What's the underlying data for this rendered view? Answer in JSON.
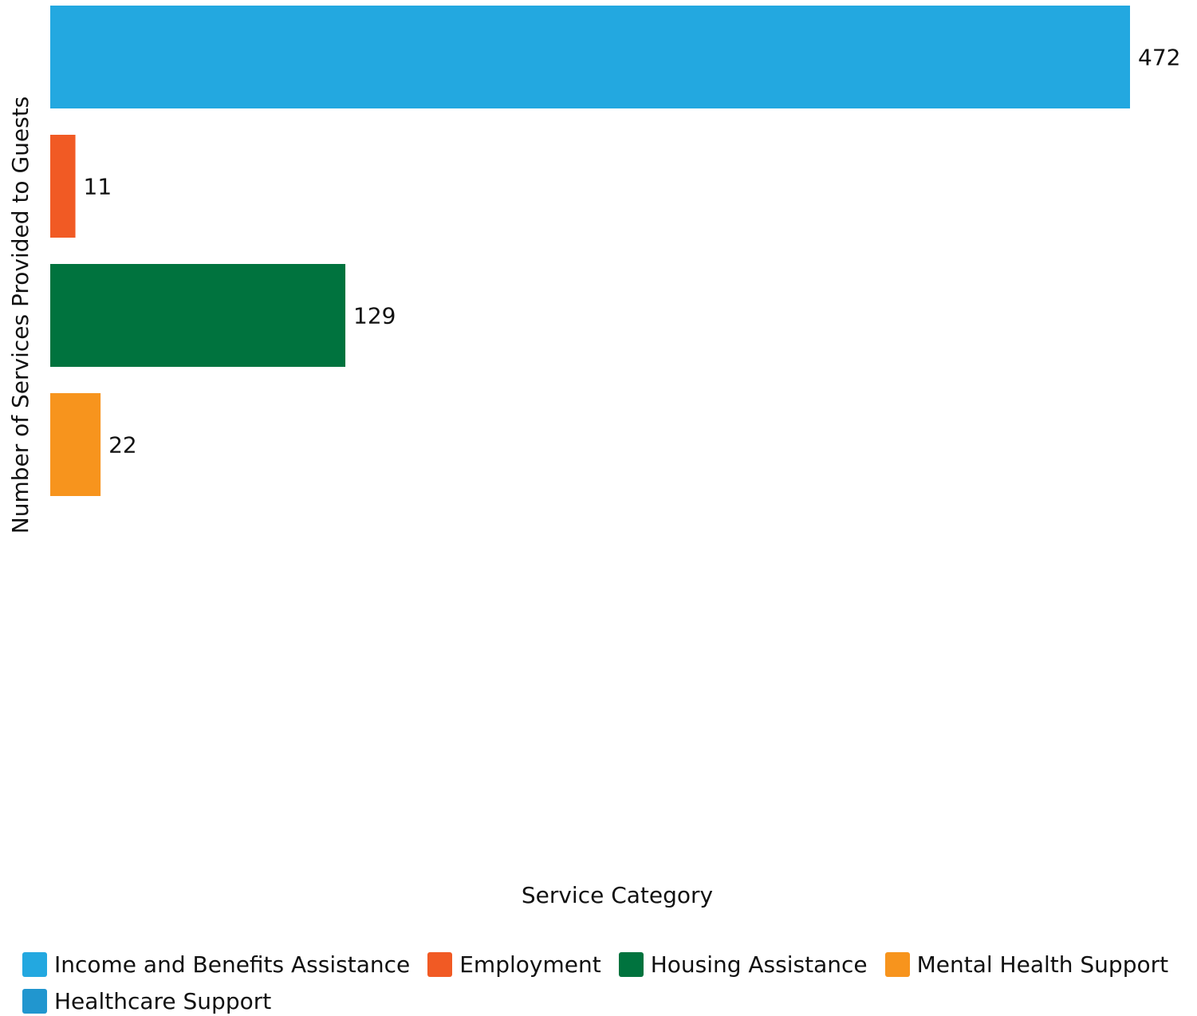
{
  "chart_data": {
    "type": "bar",
    "orientation": "horizontal",
    "xlabel": "Service Category",
    "ylabel": "Number of Services Provided to Guests",
    "categories": [
      "Income and Benefits Assistance",
      "Employment",
      "Housing Assistance",
      "Mental Health Support",
      "Healthcare Support"
    ],
    "values": [
      472,
      11,
      129,
      22,
      null
    ],
    "colors": [
      "#23a8e0",
      "#f15a24",
      "#00733e",
      "#f7941d",
      "#2196cf"
    ],
    "value_labels": [
      "472",
      "11",
      "129",
      "22",
      ""
    ],
    "xlim": [
      0,
      472
    ],
    "grid": false,
    "legend_position": "bottom"
  }
}
